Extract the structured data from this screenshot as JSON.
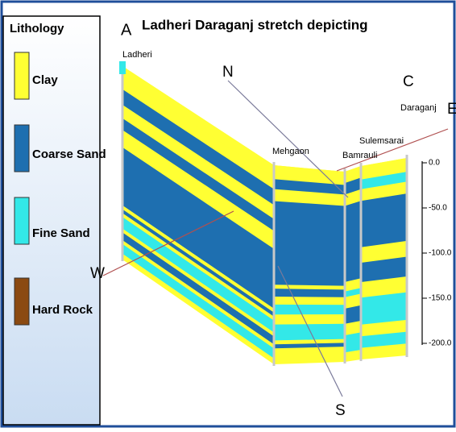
{
  "legend": {
    "title": "Lithology",
    "items": [
      "Clay",
      "Coarse Sand",
      "Fine Sand",
      "Hard Rock"
    ]
  },
  "title": {
    "letter": "A",
    "text": "Ladheri Daraganj stretch depicting"
  },
  "places": [
    "Ladheri",
    "Mehgaon",
    "Bamrauli",
    "Sulemsarai",
    "Daraganj"
  ],
  "directions": {
    "north": "N",
    "south": "S",
    "west": "W",
    "east": "E",
    "end": "C"
  },
  "depth_scale": [
    "0.0",
    "-50.0",
    "-100.0",
    "-150.0",
    "-200.0"
  ]
}
